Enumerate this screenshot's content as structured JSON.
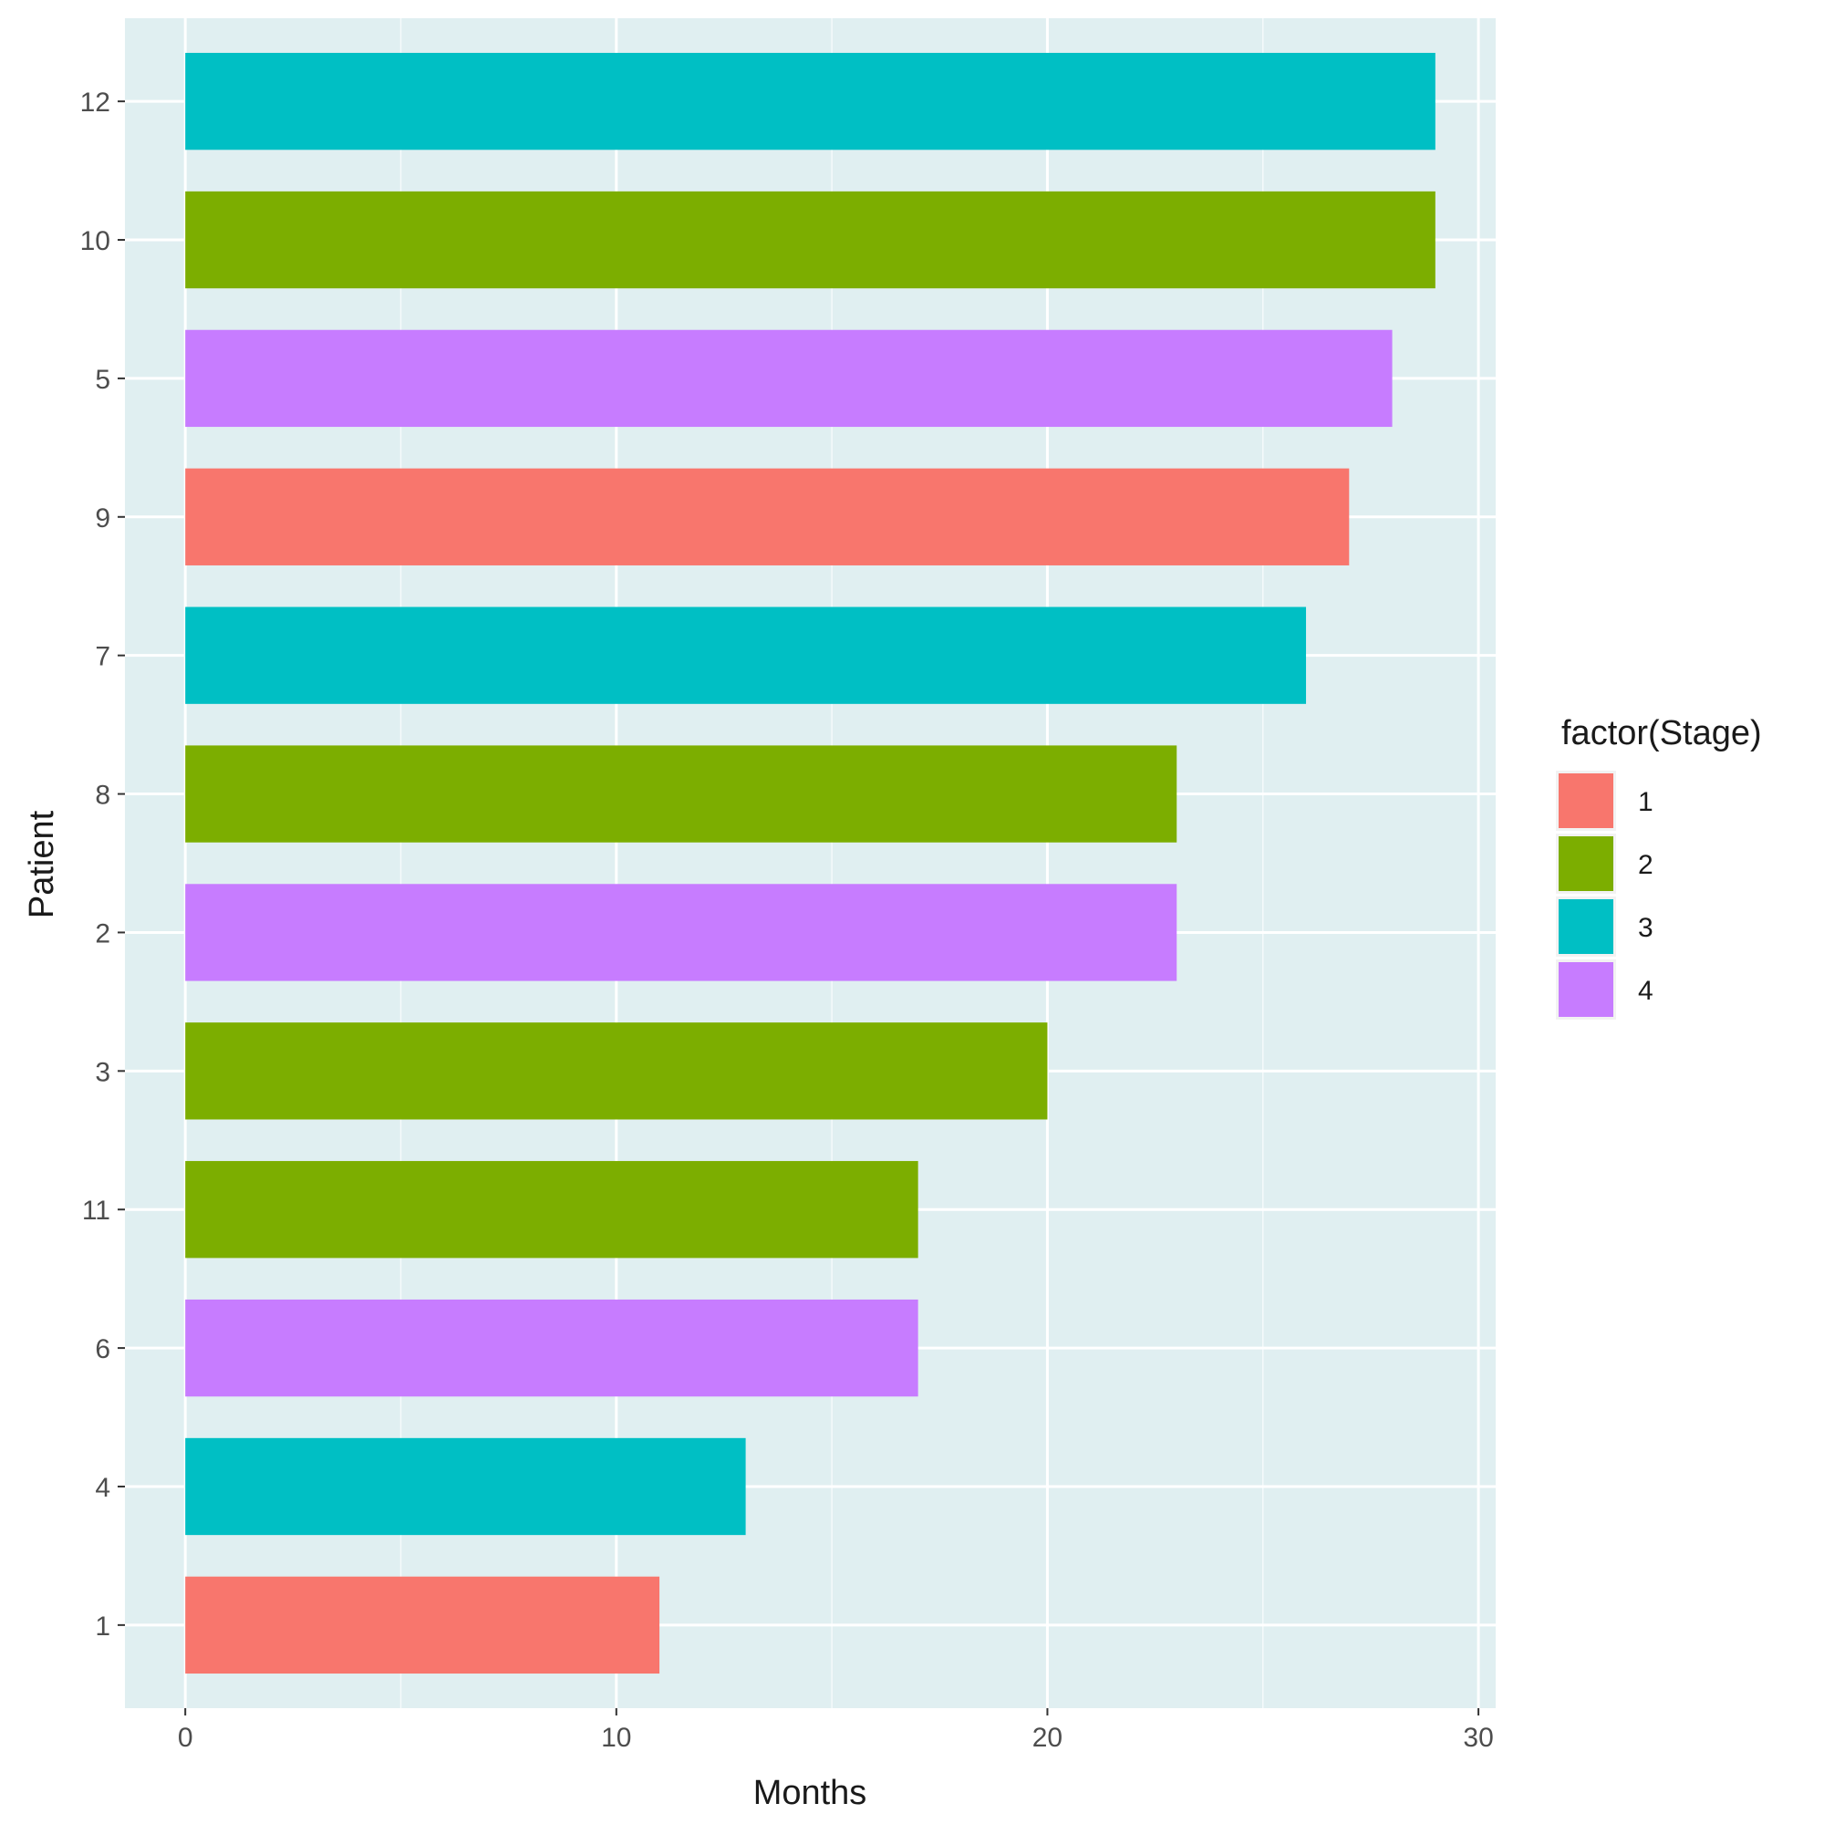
{
  "chart_data": {
    "type": "bar",
    "orientation": "horizontal",
    "xlabel": "Months",
    "ylabel": "Patient",
    "xlim": [
      -1.4,
      30.4
    ],
    "xticks": [
      0,
      10,
      20,
      30
    ],
    "grid": true,
    "legend": {
      "title": "factor(Stage)",
      "position": "right",
      "entries": [
        {
          "label": "1",
          "color": "#F8766D"
        },
        {
          "label": "2",
          "color": "#7CAE00"
        },
        {
          "label": "3",
          "color": "#00BFC4"
        },
        {
          "label": "4",
          "color": "#C77CFF"
        }
      ]
    },
    "categories": [
      "12",
      "10",
      "5",
      "9",
      "7",
      "8",
      "2",
      "3",
      "11",
      "6",
      "4",
      "1"
    ],
    "values": [
      29,
      29,
      28,
      27,
      26,
      23,
      23,
      20,
      17,
      17,
      13,
      11
    ],
    "stage": [
      "3",
      "2",
      "4",
      "1",
      "3",
      "2",
      "4",
      "2",
      "2",
      "4",
      "3",
      "1"
    ]
  }
}
